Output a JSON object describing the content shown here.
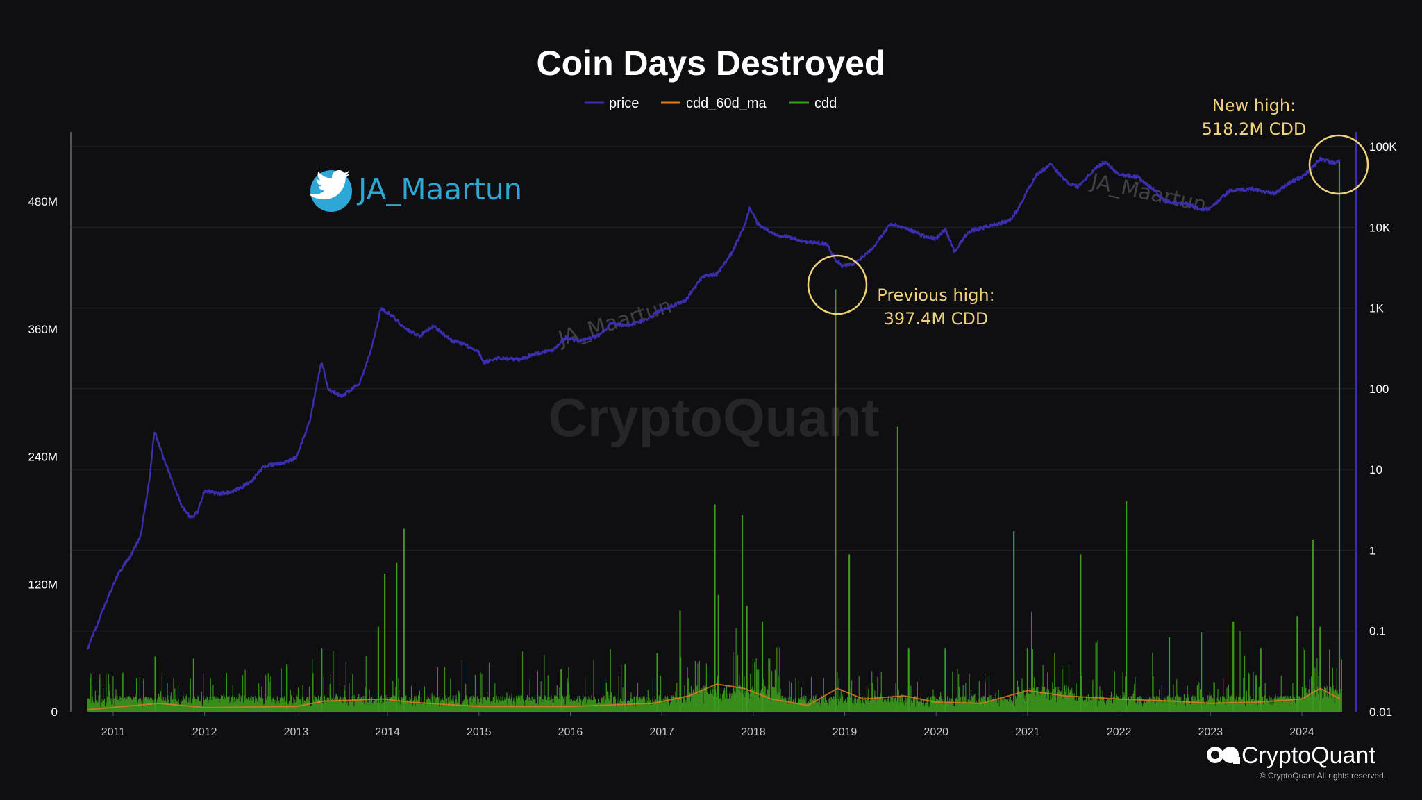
{
  "chart_data": {
    "type": "line",
    "title": "Coin Days Destroyed",
    "legend": [
      {
        "name": "price",
        "color": "#3b2fb0"
      },
      {
        "name": "cdd_60d_ma",
        "color": "#e07a1f"
      },
      {
        "name": "cdd",
        "color": "#3c9a1e"
      }
    ],
    "legend_position": "top-center",
    "grid": true,
    "left_axis": {
      "scale": "linear",
      "range": [
        0,
        540000000
      ],
      "ticks": [
        {
          "value": 0,
          "label": "0"
        },
        {
          "value": 120000000,
          "label": "120M"
        },
        {
          "value": 240000000,
          "label": "240M"
        },
        {
          "value": 360000000,
          "label": "360M"
        },
        {
          "value": 480000000,
          "label": "480M"
        }
      ]
    },
    "right_axis": {
      "scale": "log",
      "range": [
        0.01,
        100000
      ],
      "ticks": [
        {
          "value": 0.01,
          "label": "0.01"
        },
        {
          "value": 0.1,
          "label": "0.1"
        },
        {
          "value": 1,
          "label": "1"
        },
        {
          "value": 10,
          "label": "10"
        },
        {
          "value": 100,
          "label": "100"
        },
        {
          "value": 1000,
          "label": "1K"
        },
        {
          "value": 10000,
          "label": "10K"
        },
        {
          "value": 100000,
          "label": "100K"
        }
      ]
    },
    "x_axis": {
      "range": [
        2010.6,
        2024.55
      ],
      "ticks": [
        {
          "value": 2011.0,
          "label": "2011"
        },
        {
          "value": 2012.0,
          "label": "2012"
        },
        {
          "value": 2013.0,
          "label": "2013"
        },
        {
          "value": 2014.0,
          "label": "2014"
        },
        {
          "value": 2015.0,
          "label": "2015"
        },
        {
          "value": 2016.0,
          "label": "2016"
        },
        {
          "value": 2017.0,
          "label": "2017"
        },
        {
          "value": 2018.0,
          "label": "2018"
        },
        {
          "value": 2019.0,
          "label": "2019"
        },
        {
          "value": 2020.0,
          "label": "2020"
        },
        {
          "value": 2021.0,
          "label": "2021"
        },
        {
          "value": 2022.0,
          "label": "2022"
        },
        {
          "value": 2023.0,
          "label": "2023"
        },
        {
          "value": 2024.0,
          "label": "2024"
        }
      ]
    },
    "price_series": {
      "name": "price",
      "axis": "right",
      "points": [
        [
          2010.72,
          0.06
        ],
        [
          2010.9,
          0.2
        ],
        [
          2011.05,
          0.5
        ],
        [
          2011.2,
          0.9
        ],
        [
          2011.3,
          1.5
        ],
        [
          2011.4,
          8
        ],
        [
          2011.45,
          30
        ],
        [
          2011.55,
          14
        ],
        [
          2011.65,
          7
        ],
        [
          2011.75,
          3.5
        ],
        [
          2011.85,
          2.5
        ],
        [
          2011.92,
          3
        ],
        [
          2012.0,
          5.5
        ],
        [
          2012.15,
          5
        ],
        [
          2012.3,
          5.2
        ],
        [
          2012.5,
          7
        ],
        [
          2012.65,
          11
        ],
        [
          2012.85,
          12
        ],
        [
          2013.0,
          14
        ],
        [
          2013.15,
          40
        ],
        [
          2013.28,
          220
        ],
        [
          2013.35,
          100
        ],
        [
          2013.5,
          80
        ],
        [
          2013.7,
          120
        ],
        [
          2013.82,
          300
        ],
        [
          2013.93,
          1000
        ],
        [
          2014.05,
          800
        ],
        [
          2014.2,
          550
        ],
        [
          2014.35,
          450
        ],
        [
          2014.5,
          600
        ],
        [
          2014.7,
          400
        ],
        [
          2014.85,
          350
        ],
        [
          2015.0,
          280
        ],
        [
          2015.05,
          210
        ],
        [
          2015.2,
          240
        ],
        [
          2015.45,
          230
        ],
        [
          2015.6,
          270
        ],
        [
          2015.8,
          300
        ],
        [
          2015.95,
          430
        ],
        [
          2016.1,
          390
        ],
        [
          2016.3,
          450
        ],
        [
          2016.45,
          650
        ],
        [
          2016.6,
          600
        ],
        [
          2016.8,
          700
        ],
        [
          2017.0,
          960
        ],
        [
          2017.25,
          1200
        ],
        [
          2017.45,
          2500
        ],
        [
          2017.6,
          2600
        ],
        [
          2017.75,
          4500
        ],
        [
          2017.9,
          10000
        ],
        [
          2017.96,
          17500
        ],
        [
          2018.05,
          11000
        ],
        [
          2018.2,
          8500
        ],
        [
          2018.4,
          7500
        ],
        [
          2018.6,
          6500
        ],
        [
          2018.8,
          6300
        ],
        [
          2018.9,
          4000
        ],
        [
          2018.97,
          3300
        ],
        [
          2019.1,
          3500
        ],
        [
          2019.3,
          5500
        ],
        [
          2019.5,
          11000
        ],
        [
          2019.7,
          9500
        ],
        [
          2019.9,
          7500
        ],
        [
          2020.0,
          7200
        ],
        [
          2020.1,
          9500
        ],
        [
          2020.2,
          5000
        ],
        [
          2020.35,
          8800
        ],
        [
          2020.6,
          10500
        ],
        [
          2020.8,
          12000
        ],
        [
          2020.9,
          17000
        ],
        [
          2021.0,
          29000
        ],
        [
          2021.1,
          45000
        ],
        [
          2021.25,
          60000
        ],
        [
          2021.45,
          35000
        ],
        [
          2021.55,
          32000
        ],
        [
          2021.75,
          55000
        ],
        [
          2021.85,
          65000
        ],
        [
          2022.0,
          45000
        ],
        [
          2022.2,
          42000
        ],
        [
          2022.4,
          28000
        ],
        [
          2022.5,
          21000
        ],
        [
          2022.75,
          19500
        ],
        [
          2022.9,
          16500
        ],
        [
          2023.0,
          17000
        ],
        [
          2023.2,
          28000
        ],
        [
          2023.45,
          30000
        ],
        [
          2023.7,
          26000
        ],
        [
          2023.85,
          35000
        ],
        [
          2024.0,
          42000
        ],
        [
          2024.1,
          52000
        ],
        [
          2024.2,
          71000
        ],
        [
          2024.35,
          62000
        ],
        [
          2024.42,
          66000
        ]
      ]
    },
    "cdd_series": {
      "name": "cdd",
      "axis": "left",
      "spikes": [
        [
          2011.46,
          52000000
        ],
        [
          2011.88,
          50000000
        ],
        [
          2012.9,
          45000000
        ],
        [
          2013.28,
          60000000
        ],
        [
          2013.9,
          80000000
        ],
        [
          2013.97,
          130000000
        ],
        [
          2014.1,
          140000000
        ],
        [
          2014.18,
          172000000
        ],
        [
          2015.9,
          40000000
        ],
        [
          2016.6,
          45000000
        ],
        [
          2016.95,
          55000000
        ],
        [
          2017.2,
          95000000
        ],
        [
          2017.58,
          195000000
        ],
        [
          2017.62,
          110000000
        ],
        [
          2017.88,
          185000000
        ],
        [
          2017.93,
          100000000
        ],
        [
          2018.1,
          85000000
        ],
        [
          2018.9,
          397400000
        ],
        [
          2019.05,
          148000000
        ],
        [
          2019.58,
          268000000
        ],
        [
          2019.7,
          60000000
        ],
        [
          2020.1,
          60000000
        ],
        [
          2020.85,
          170000000
        ],
        [
          2021.0,
          60000000
        ],
        [
          2021.58,
          148000000
        ],
        [
          2021.75,
          65000000
        ],
        [
          2022.08,
          198000000
        ],
        [
          2022.55,
          70000000
        ],
        [
          2022.9,
          75000000
        ],
        [
          2023.25,
          85000000
        ],
        [
          2023.55,
          60000000
        ],
        [
          2023.95,
          90000000
        ],
        [
          2024.12,
          162000000
        ],
        [
          2024.2,
          80000000
        ],
        [
          2024.41,
          518200000
        ]
      ]
    },
    "cdd_60d_ma_series": {
      "name": "cdd_60d_ma",
      "axis": "left",
      "points": [
        [
          2010.72,
          2000000
        ],
        [
          2011.5,
          8000000
        ],
        [
          2012.0,
          4000000
        ],
        [
          2013.0,
          5000000
        ],
        [
          2013.3,
          10000000
        ],
        [
          2013.95,
          12000000
        ],
        [
          2014.25,
          9000000
        ],
        [
          2015.0,
          5000000
        ],
        [
          2016.0,
          5000000
        ],
        [
          2016.9,
          8000000
        ],
        [
          2017.3,
          15000000
        ],
        [
          2017.6,
          26000000
        ],
        [
          2017.9,
          22000000
        ],
        [
          2018.2,
          12000000
        ],
        [
          2018.6,
          6000000
        ],
        [
          2018.92,
          22000000
        ],
        [
          2019.2,
          12000000
        ],
        [
          2019.65,
          15000000
        ],
        [
          2020.0,
          9000000
        ],
        [
          2020.5,
          8000000
        ],
        [
          2021.0,
          20000000
        ],
        [
          2021.4,
          15000000
        ],
        [
          2022.0,
          12000000
        ],
        [
          2022.6,
          10000000
        ],
        [
          2023.0,
          8000000
        ],
        [
          2023.5,
          9000000
        ],
        [
          2024.0,
          12000000
        ],
        [
          2024.2,
          22000000
        ],
        [
          2024.42,
          12000000
        ]
      ]
    },
    "annotations": [
      {
        "id": "previous",
        "lines": [
          "Previous high:",
          "397.4M CDD"
        ],
        "x": 2018.92,
        "value": 397400000
      },
      {
        "id": "new",
        "lines": [
          "New high:",
          "518.2M CDD"
        ],
        "x": 2024.3,
        "value": 518200000
      }
    ]
  },
  "watermarks": {
    "twitter_handle": "JA_Maartun",
    "small_left": "JA_Maartun",
    "small_right": "JA_Maartun",
    "big": "CryptoQuant",
    "brand": "CryptoQuant",
    "copyright": "© CryptoQuant All rights reserved."
  },
  "icons": [
    "twitter-bird-icon",
    "cryptoquant-logo-icon"
  ]
}
